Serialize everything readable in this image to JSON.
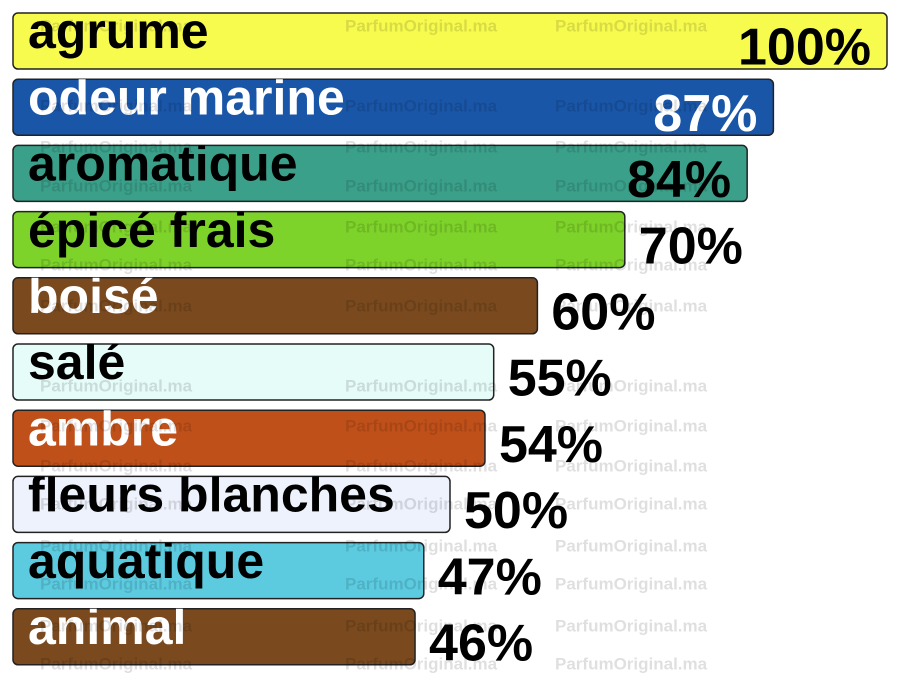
{
  "chart_data": {
    "type": "bar",
    "orientation": "horizontal",
    "categories": [
      "agrume",
      "odeur marine",
      "aromatique",
      "épicé frais",
      "boisé",
      "salé",
      "ambre",
      "fleurs blanches",
      "aquatique",
      "animal"
    ],
    "values": [
      100,
      87,
      84,
      70,
      60,
      55,
      54,
      50,
      47,
      46
    ],
    "value_labels": [
      "100%",
      "87%",
      "84%",
      "70%",
      "60%",
      "55%",
      "54%",
      "50%",
      "47%",
      "46%"
    ],
    "colors": [
      "#f7fb4e",
      "#1a56a8",
      "#3aa08a",
      "#7ed32a",
      "#7a4a1e",
      "#e6fcf8",
      "#c0501a",
      "#eef2fc",
      "#5ccbe0",
      "#7a4a1e"
    ],
    "xlim": [
      0,
      100
    ],
    "watermark": "ParfumOriginal.ma"
  }
}
